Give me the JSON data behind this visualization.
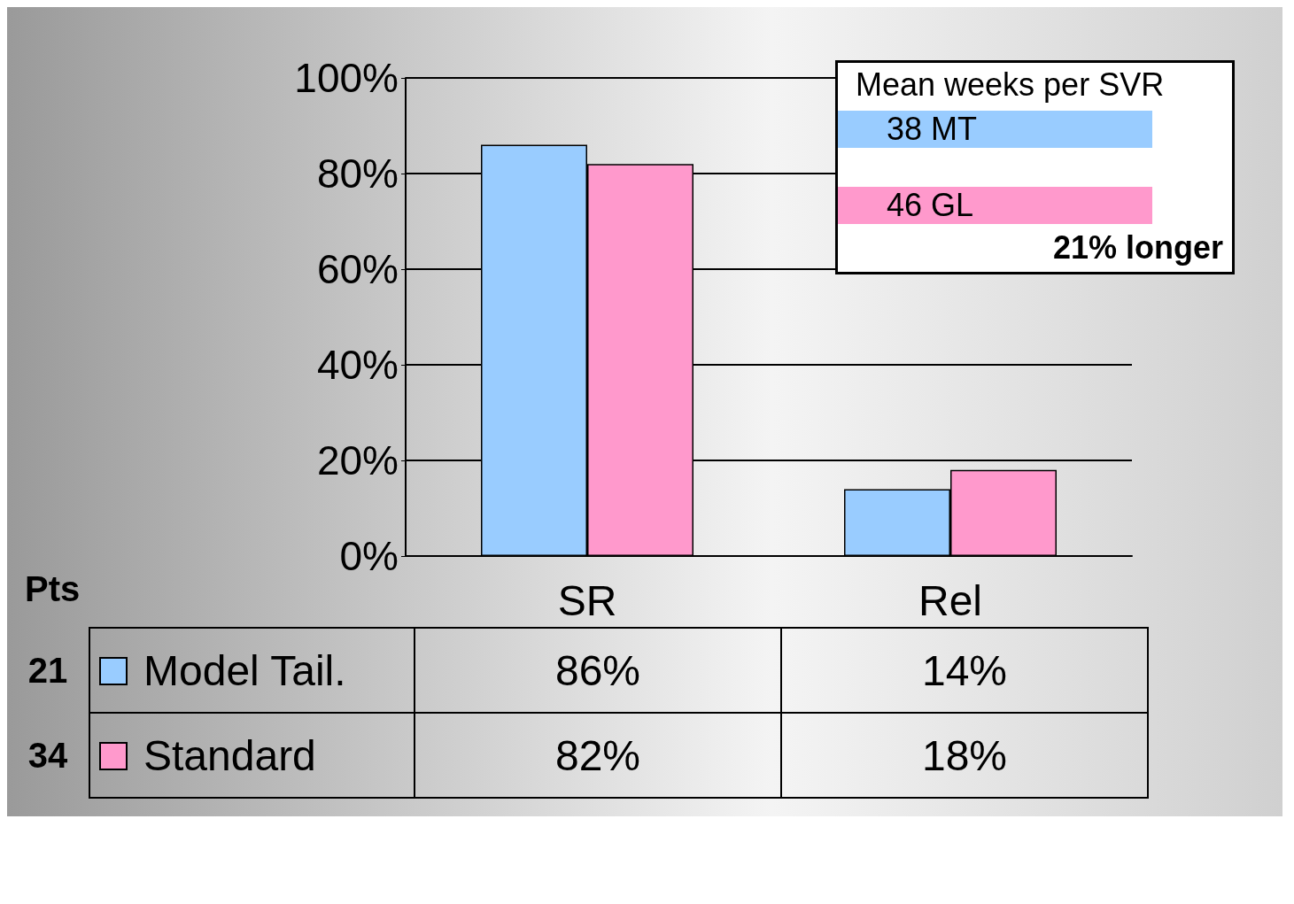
{
  "chart_data": {
    "type": "bar",
    "categories": [
      "SR",
      "Rel"
    ],
    "series": [
      {
        "name": "Model Tail.",
        "color": "#99ccff",
        "values": [
          86,
          14
        ],
        "value_labels": [
          "86%",
          "14%"
        ]
      },
      {
        "name": "Standard",
        "color": "#ff99cc",
        "values": [
          82,
          18
        ],
        "value_labels": [
          "82%",
          "18%"
        ]
      }
    ],
    "ylim": [
      0,
      100
    ],
    "yticks": [
      {
        "value": 0,
        "label": "0%"
      },
      {
        "value": 20,
        "label": "20%"
      },
      {
        "value": 40,
        "label": "40%"
      },
      {
        "value": 60,
        "label": "60%"
      },
      {
        "value": 80,
        "label": "80%"
      },
      {
        "value": 100,
        "label": "100%"
      }
    ],
    "grid": "y",
    "legend": "bottom",
    "annotations": [
      "Mean weeks per SVR",
      "38 MT",
      "46 GL",
      "21% longer",
      "Pts",
      "21",
      "34"
    ]
  }
}
